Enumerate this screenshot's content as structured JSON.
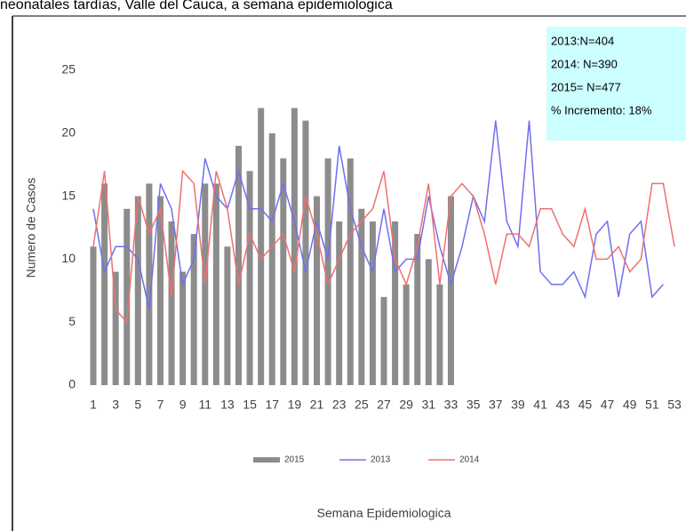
{
  "chart_data": {
    "type": "bar",
    "title": "neonatales  tardías, Valle del Cauca, a semana epidemiologica",
    "y_label": "Numero de Casos",
    "x_label": "Semana Epidemiologica",
    "categories": [
      1,
      null,
      3,
      null,
      5,
      null,
      7,
      null,
      9,
      null,
      11,
      null,
      13,
      null,
      15,
      null,
      17,
      null,
      19,
      null,
      21,
      null,
      23,
      null,
      25,
      null,
      27,
      null,
      29,
      null,
      31,
      null,
      33,
      null,
      35,
      null,
      37,
      null,
      39,
      null,
      41,
      null,
      43,
      null,
      45,
      null,
      47,
      null,
      49,
      null,
      51,
      null,
      53
    ],
    "series": [
      {
        "name": "2015",
        "type": "bar",
        "color": "#8c8c8c",
        "values": [
          11,
          16,
          9,
          14,
          15,
          16,
          15,
          13,
          9,
          12,
          16,
          16,
          11,
          19,
          17,
          22,
          20,
          18,
          22,
          21,
          15,
          18,
          13,
          18,
          14,
          13,
          7,
          13,
          8,
          12,
          10,
          8,
          15,
          null,
          null,
          null,
          null,
          null,
          null,
          null,
          null,
          null,
          null,
          null,
          null,
          null,
          null,
          null,
          null,
          null,
          null,
          null,
          null
        ]
      },
      {
        "name": "2013",
        "type": "line",
        "color": "#7070f0",
        "values": [
          14,
          9,
          11,
          11,
          10,
          6,
          16,
          14,
          8,
          10,
          18,
          15,
          14,
          17,
          14,
          14,
          13,
          16,
          13,
          9,
          13,
          10,
          19,
          14,
          11,
          9,
          14,
          9,
          10,
          10,
          15,
          11,
          8,
          11,
          15,
          13,
          21,
          13,
          11,
          21,
          9,
          8,
          8,
          9,
          7,
          12,
          13,
          7,
          12,
          13,
          7,
          8,
          null
        ]
      },
      {
        "name": "2014",
        "type": "line",
        "color": "#f07070",
        "values": [
          11,
          17,
          6,
          5,
          15,
          12,
          14,
          7,
          17,
          16,
          8,
          17,
          14,
          8,
          12,
          10,
          11,
          12,
          9,
          15,
          12,
          8,
          10,
          12,
          13,
          14,
          17,
          10,
          8,
          11,
          16,
          8,
          15,
          16,
          15,
          12,
          8,
          12,
          12,
          11,
          14,
          14,
          12,
          11,
          14,
          10,
          10,
          11,
          9,
          10,
          16,
          16,
          11
        ]
      }
    ],
    "ylim": [
      0,
      25
    ],
    "yticks": [
      0,
      5,
      10,
      15,
      20,
      25
    ],
    "annotations": [
      "2013:N=404",
      "2014: N=390",
      "2015= N=477",
      "% Incremento: 18%"
    ],
    "annotation_color": "#ccffff",
    "legend": "bottom"
  }
}
